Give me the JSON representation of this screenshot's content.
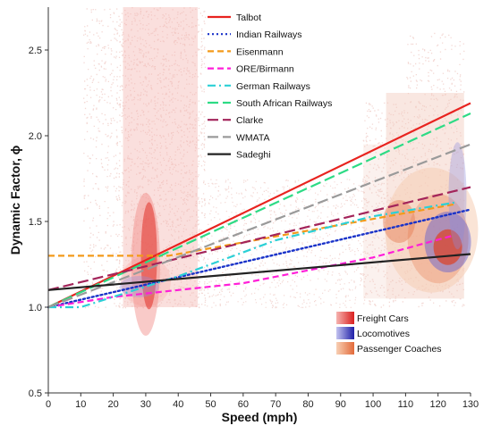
{
  "chart_data": {
    "type": "line",
    "xlabel": "Speed (mph)",
    "ylabel": "Dynamic Factor, ϕ",
    "xlim": [
      0,
      130
    ],
    "ylim": [
      0.5,
      2.75
    ],
    "x_ticks": [
      "0",
      "10",
      "20",
      "30",
      "40",
      "50",
      "60",
      "70",
      "80",
      "90",
      "100",
      "110",
      "120",
      "130"
    ],
    "y_ticks": [
      "0.5",
      "1.0",
      "1.5",
      "2.0",
      "2.5"
    ],
    "grid": false,
    "legend_position": "top-center",
    "series": [
      {
        "name": "Talbot",
        "color": "#e8231f",
        "dash": "solid",
        "x": [
          0,
          130
        ],
        "y": [
          1.0,
          2.19
        ]
      },
      {
        "name": "Indian Railways",
        "color": "#1a33c9",
        "dash": "dotted",
        "x": [
          0,
          130
        ],
        "y": [
          1.0,
          1.57
        ]
      },
      {
        "name": "Eisenmann",
        "color": "#f39a1a",
        "dash": "dashed",
        "x": [
          0,
          37,
          125
        ],
        "y": [
          1.3,
          1.3,
          1.6
        ]
      },
      {
        "name": "ORE/Birmann",
        "color": "#ff1fd8",
        "dash": "dashed",
        "x": [
          0,
          20,
          60,
          100,
          125
        ],
        "y": [
          1.0,
          1.06,
          1.14,
          1.29,
          1.42
        ]
      },
      {
        "name": "German Railways",
        "color": "#2bd0d6",
        "dash": "dashdot",
        "x": [
          0,
          10,
          40,
          70,
          100,
          125
        ],
        "y": [
          1.0,
          1.0,
          1.18,
          1.39,
          1.53,
          1.61
        ]
      },
      {
        "name": "South African Railways",
        "color": "#2ddb85",
        "dash": "longdash",
        "x": [
          0,
          130
        ],
        "y": [
          1.0,
          2.13
        ]
      },
      {
        "name": "Clarke",
        "color": "#a3245a",
        "dash": "longdash",
        "x": [
          0,
          130
        ],
        "y": [
          1.1,
          1.7
        ]
      },
      {
        "name": "WMATA",
        "color": "#9a9a9a",
        "dash": "longdash",
        "x": [
          0,
          130
        ],
        "y": [
          1.0,
          1.95
        ]
      },
      {
        "name": "Sadeghi",
        "color": "#222222",
        "dash": "solid",
        "x": [
          0,
          130
        ],
        "y": [
          1.1,
          1.31
        ]
      }
    ],
    "density_legend": [
      {
        "name": "Freight Cars",
        "color": "#e83a3a"
      },
      {
        "name": "Locomotives",
        "color": "#3535c8"
      },
      {
        "name": "Passenger Coaches",
        "color": "#f08a55"
      }
    ]
  }
}
